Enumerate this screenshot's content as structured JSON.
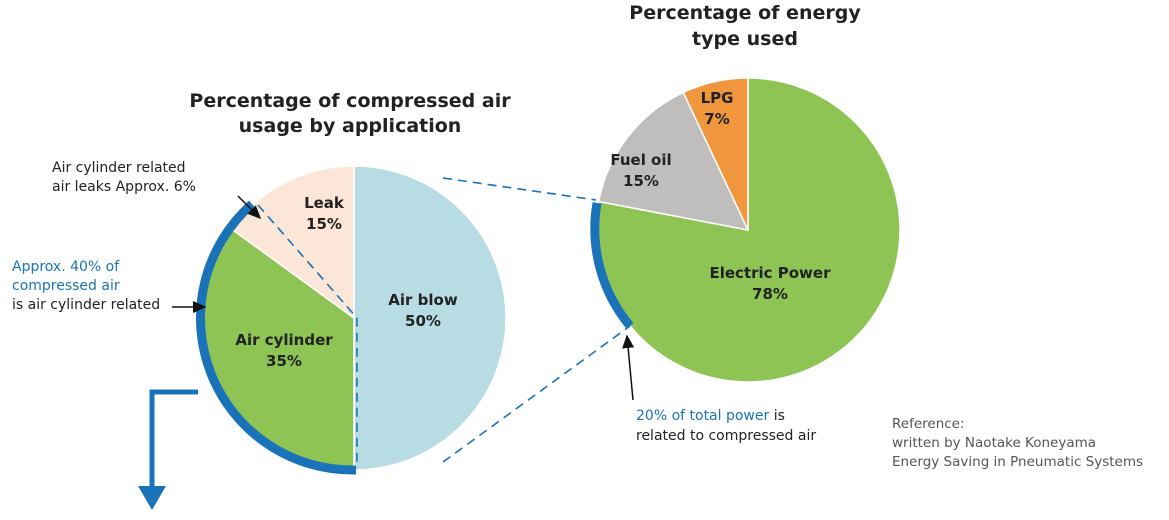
{
  "chart_data": [
    {
      "type": "pie",
      "title": [
        "Percentage of compressed air",
        "usage by application"
      ],
      "categories": [
        "Air blow",
        "Air cylinder",
        "Leak"
      ],
      "values": [
        50,
        35,
        15
      ],
      "value_labels": [
        "50%",
        "35%",
        "15%"
      ],
      "colors": [
        "#b7dce4",
        "#8dc454",
        "#fbe6d7"
      ]
    },
    {
      "type": "pie",
      "title": [
        "Percentage of energy",
        "type used"
      ],
      "categories": [
        "Electric Power",
        "Fuel oil",
        "LPG"
      ],
      "values": [
        78,
        15,
        7
      ],
      "value_labels": [
        "78%",
        "15%",
        "7%"
      ],
      "colors": [
        "#8dc454",
        "#c0bebc",
        "#f0973e"
      ]
    }
  ],
  "annotations": {
    "leaks": [
      "Air cylinder related",
      "air leaks Approx. 6%"
    ],
    "cylinder_blue": [
      "Approx. 40% of",
      "compressed air"
    ],
    "cylinder_black": "is air cylinder related",
    "power_blue": "20% of total power",
    "power_black_1": " is",
    "power_black_2": "related to compressed air",
    "reference": [
      "Reference:",
      "written by Naotake Koneyama",
      "Energy Saving in Pneumatic Systems"
    ]
  }
}
